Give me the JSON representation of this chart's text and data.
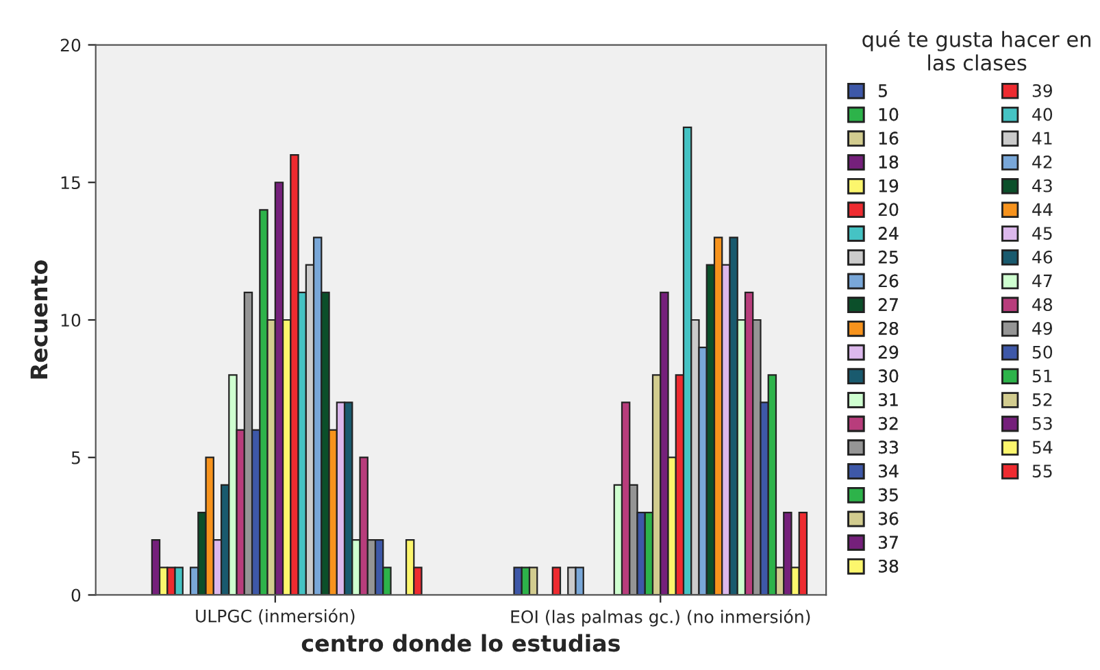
{
  "chart_data": {
    "type": "bar",
    "xlabel": "centro donde lo estudias",
    "ylabel": "Recuento",
    "legend_title": "qué te gusta hacer en las clases",
    "categories": [
      "ULPGC (inmersión)",
      "EOI (las palmas gc.) (no inmersión)"
    ],
    "ylim": [
      0,
      20
    ],
    "yticks": [
      0,
      5,
      10,
      15,
      20
    ],
    "grid": false,
    "legend": "right",
    "series": [
      {
        "name": "5",
        "color": "#3e58a8",
        "values": [
          0,
          1
        ]
      },
      {
        "name": "10",
        "color": "#2db34a",
        "values": [
          0,
          1
        ]
      },
      {
        "name": "16",
        "color": "#d2cc8f",
        "values": [
          0,
          1
        ]
      },
      {
        "name": "18",
        "color": "#75207b",
        "values": [
          2,
          0
        ]
      },
      {
        "name": "19",
        "color": "#fcf66d",
        "values": [
          1,
          0
        ]
      },
      {
        "name": "20",
        "color": "#ee2b30",
        "values": [
          1,
          1
        ]
      },
      {
        "name": "24",
        "color": "#45c3c4",
        "values": [
          1,
          0
        ]
      },
      {
        "name": "25",
        "color": "#cbcbcb",
        "values": [
          0,
          1
        ]
      },
      {
        "name": "26",
        "color": "#79a7d8",
        "values": [
          1,
          1
        ]
      },
      {
        "name": "27",
        "color": "#0b4f2a",
        "values": [
          3,
          0
        ]
      },
      {
        "name": "28",
        "color": "#f7931d",
        "values": [
          5,
          0
        ]
      },
      {
        "name": "29",
        "color": "#dcb8ec",
        "values": [
          2,
          0
        ]
      },
      {
        "name": "30",
        "color": "#195a6e",
        "values": [
          4,
          0
        ]
      },
      {
        "name": "31",
        "color": "#cfffd0",
        "values": [
          8,
          4
        ]
      },
      {
        "name": "32",
        "color": "#b83d7c",
        "values": [
          6,
          7
        ]
      },
      {
        "name": "33",
        "color": "#959595",
        "values": [
          11,
          4
        ]
      },
      {
        "name": "34",
        "color": "#3e58a8",
        "values": [
          6,
          3
        ]
      },
      {
        "name": "35",
        "color": "#2db34a",
        "values": [
          14,
          3
        ]
      },
      {
        "name": "36",
        "color": "#d2cc8f",
        "values": [
          10,
          8
        ]
      },
      {
        "name": "37",
        "color": "#75207b",
        "values": [
          15,
          11
        ]
      },
      {
        "name": "38",
        "color": "#fcf66d",
        "values": [
          10,
          5
        ]
      },
      {
        "name": "39",
        "color": "#ee2b30",
        "values": [
          16,
          8
        ]
      },
      {
        "name": "40",
        "color": "#45c3c4",
        "values": [
          11,
          17
        ]
      },
      {
        "name": "41",
        "color": "#cbcbcb",
        "values": [
          12,
          10
        ]
      },
      {
        "name": "42",
        "color": "#79a7d8",
        "values": [
          13,
          9
        ]
      },
      {
        "name": "43",
        "color": "#0b4f2a",
        "values": [
          11,
          12
        ]
      },
      {
        "name": "44",
        "color": "#f7931d",
        "values": [
          6,
          13
        ]
      },
      {
        "name": "45",
        "color": "#dcb8ec",
        "values": [
          7,
          12
        ]
      },
      {
        "name": "46",
        "color": "#195a6e",
        "values": [
          7,
          13
        ]
      },
      {
        "name": "47",
        "color": "#cfffd0",
        "values": [
          2,
          10
        ]
      },
      {
        "name": "48",
        "color": "#b83d7c",
        "values": [
          5,
          11
        ]
      },
      {
        "name": "49",
        "color": "#959595",
        "values": [
          2,
          10
        ]
      },
      {
        "name": "50",
        "color": "#3e58a8",
        "values": [
          2,
          7
        ]
      },
      {
        "name": "51",
        "color": "#2db34a",
        "values": [
          1,
          8
        ]
      },
      {
        "name": "52",
        "color": "#d2cc8f",
        "values": [
          0,
          1
        ]
      },
      {
        "name": "53",
        "color": "#75207b",
        "values": [
          0,
          3
        ]
      },
      {
        "name": "54",
        "color": "#fcf66d",
        "values": [
          2,
          1
        ]
      },
      {
        "name": "55",
        "color": "#ee2b30",
        "values": [
          1,
          3
        ]
      }
    ]
  }
}
